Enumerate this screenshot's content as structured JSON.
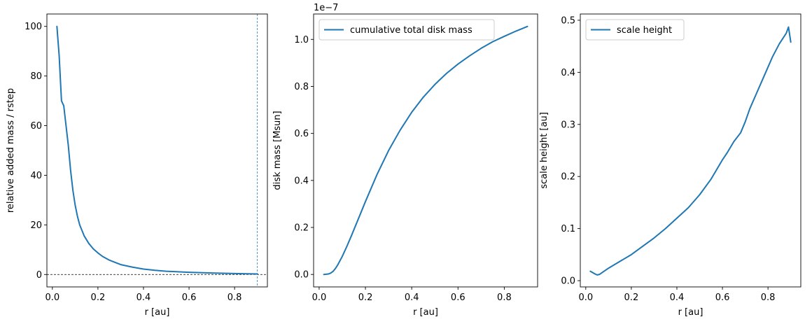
{
  "chart_data": [
    {
      "type": "line",
      "xlabel": "r [au]",
      "ylabel": "relative added mass / rstep",
      "xlim": [
        -0.024,
        0.944
      ],
      "ylim": [
        -5,
        105
      ],
      "xticks": [
        0.0,
        0.2,
        0.4,
        0.6,
        0.8
      ],
      "xtick_labels": [
        "0.0",
        "0.2",
        "0.4",
        "0.6",
        "0.8"
      ],
      "yticks": [
        0,
        20,
        40,
        60,
        80,
        100
      ],
      "ytick_labels": [
        "0",
        "20",
        "40",
        "60",
        "80",
        "100"
      ],
      "grid": false,
      "legend": null,
      "color": "#1f77b4",
      "reference_lines": [
        {
          "orientation": "horizontal",
          "value": 0,
          "style": "dashed",
          "color": "#000000"
        },
        {
          "orientation": "vertical",
          "value": 0.9,
          "style": "dashed",
          "color": "#1f77b4"
        }
      ],
      "series": [
        {
          "x": [
            0.02,
            0.03,
            0.04,
            0.05,
            0.06,
            0.07,
            0.08,
            0.09,
            0.1,
            0.11,
            0.12,
            0.14,
            0.16,
            0.18,
            0.2,
            0.22,
            0.25,
            0.28,
            0.3,
            0.35,
            0.4,
            0.45,
            0.5,
            0.6,
            0.7,
            0.8,
            0.9
          ],
          "y": [
            100,
            88,
            70,
            68,
            60,
            52,
            42,
            34,
            28,
            23.5,
            20,
            15.5,
            12.5,
            10.3,
            8.7,
            7.3,
            5.8,
            4.7,
            4.0,
            3.0,
            2.2,
            1.7,
            1.3,
            0.9,
            0.6,
            0.4,
            0.2
          ]
        }
      ]
    },
    {
      "type": "line",
      "xlabel": "r [au]",
      "ylabel": "disk mass [Msun]",
      "offset_text": "1e−7",
      "xlim": [
        -0.024,
        0.944
      ],
      "ylim": [
        -0.053,
        1.108
      ],
      "xticks": [
        0.0,
        0.2,
        0.4,
        0.6,
        0.8
      ],
      "xtick_labels": [
        "0.0",
        "0.2",
        "0.4",
        "0.6",
        "0.8"
      ],
      "yticks": [
        0.0,
        0.2,
        0.4,
        0.6,
        0.8,
        1.0
      ],
      "ytick_labels": [
        "0.0",
        "0.2",
        "0.4",
        "0.6",
        "0.8",
        "1.0"
      ],
      "grid": false,
      "legend": "upper left",
      "color": "#1f77b4",
      "series": [
        {
          "name": "cumulative total disk mass",
          "x": [
            0.02,
            0.04,
            0.05,
            0.06,
            0.07,
            0.08,
            0.1,
            0.12,
            0.14,
            0.16,
            0.18,
            0.2,
            0.25,
            0.3,
            0.35,
            0.4,
            0.45,
            0.5,
            0.55,
            0.6,
            0.65,
            0.7,
            0.75,
            0.8,
            0.85,
            0.9
          ],
          "y": [
            0.0,
            0.002,
            0.006,
            0.013,
            0.025,
            0.04,
            0.077,
            0.12,
            0.166,
            0.214,
            0.262,
            0.31,
            0.425,
            0.527,
            0.614,
            0.69,
            0.754,
            0.808,
            0.855,
            0.895,
            0.93,
            0.962,
            0.99,
            1.013,
            1.035,
            1.055
          ]
        }
      ]
    },
    {
      "type": "line",
      "xlabel": "r [au]",
      "ylabel": "scale height [au]",
      "xlim": [
        -0.024,
        0.944
      ],
      "ylim": [
        -0.012,
        0.512
      ],
      "xticks": [
        0.0,
        0.2,
        0.4,
        0.6,
        0.8
      ],
      "xtick_labels": [
        "0.0",
        "0.2",
        "0.4",
        "0.6",
        "0.8"
      ],
      "yticks": [
        0.0,
        0.1,
        0.2,
        0.3,
        0.4,
        0.5
      ],
      "ytick_labels": [
        "0.0",
        "0.1",
        "0.2",
        "0.3",
        "0.4",
        "0.5"
      ],
      "grid": false,
      "legend": "upper left",
      "color": "#1f77b4",
      "series": [
        {
          "name": "scale height",
          "x": [
            0.02,
            0.04,
            0.05,
            0.06,
            0.08,
            0.1,
            0.15,
            0.2,
            0.25,
            0.3,
            0.35,
            0.4,
            0.45,
            0.5,
            0.55,
            0.6,
            0.62,
            0.65,
            0.68,
            0.7,
            0.72,
            0.75,
            0.78,
            0.8,
            0.82,
            0.85,
            0.88,
            0.89,
            0.9
          ],
          "y": [
            0.018,
            0.013,
            0.011,
            0.012,
            0.018,
            0.024,
            0.037,
            0.05,
            0.066,
            0.082,
            0.1,
            0.12,
            0.14,
            0.165,
            0.195,
            0.232,
            0.245,
            0.267,
            0.284,
            0.305,
            0.33,
            0.36,
            0.39,
            0.41,
            0.43,
            0.455,
            0.475,
            0.487,
            0.458
          ]
        }
      ]
    }
  ]
}
